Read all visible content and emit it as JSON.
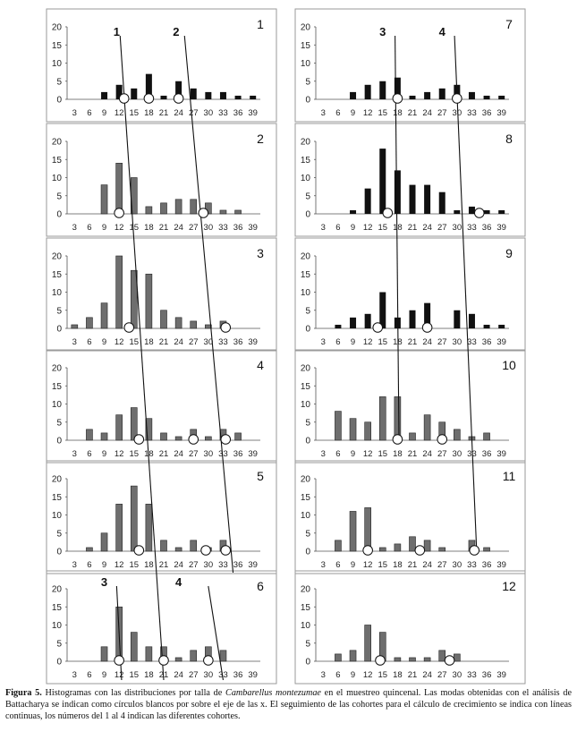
{
  "figure": {
    "x_ticks": [
      3,
      6,
      9,
      12,
      15,
      18,
      21,
      24,
      27,
      30,
      33,
      36,
      39
    ],
    "y_ticks": [
      0,
      5,
      10,
      15,
      20
    ],
    "ylim": [
      0,
      20
    ],
    "cohort_labels": [
      "1",
      "2",
      "3",
      "4"
    ]
  },
  "caption": {
    "label": "Figura 5.",
    "text_1": " Histogramas con las distribuciones por talla de ",
    "species": "Cambarellus montezumae",
    "text_2": " en el muestreo quincenal. Las modas obtenidas con el análisis de Battacharya se indican como círculos blancos por sobre el eje de las x. El seguimiento de las cohortes para el cálculo de crecimiento se indica con líneas continuas, los números del 1 al 4 indican las diferentes cohortes."
  },
  "chart_data": [
    {
      "type": "bar",
      "title": "1",
      "categories": [
        "3",
        "6",
        "9",
        "12",
        "15",
        "18",
        "21",
        "24",
        "27",
        "30",
        "33",
        "36",
        "39"
      ],
      "values": [
        0,
        0,
        2,
        4,
        3,
        7,
        1,
        5,
        3,
        2,
        2,
        1,
        1
      ],
      "modes": [
        13,
        18,
        24
      ],
      "ylim": [
        0,
        20
      ]
    },
    {
      "type": "bar",
      "title": "2",
      "categories": [
        "3",
        "6",
        "9",
        "12",
        "15",
        "18",
        "21",
        "24",
        "27",
        "30",
        "33",
        "36",
        "39"
      ],
      "values": [
        0,
        0,
        8,
        14,
        10,
        2,
        3,
        4,
        4,
        3,
        1,
        1,
        0
      ],
      "modes": [
        12,
        29
      ],
      "ylim": [
        0,
        20
      ]
    },
    {
      "type": "bar",
      "title": "3",
      "categories": [
        "3",
        "6",
        "9",
        "12",
        "15",
        "18",
        "21",
        "24",
        "27",
        "30",
        "33",
        "36",
        "39"
      ],
      "values": [
        1,
        3,
        7,
        20,
        16,
        15,
        5,
        3,
        2,
        1,
        2,
        0,
        0
      ],
      "modes": [
        14,
        33.5
      ],
      "ylim": [
        0,
        20
      ]
    },
    {
      "type": "bar",
      "title": "4",
      "categories": [
        "3",
        "6",
        "9",
        "12",
        "15",
        "18",
        "21",
        "24",
        "27",
        "30",
        "33",
        "36",
        "39"
      ],
      "values": [
        0,
        3,
        2,
        7,
        9,
        6,
        2,
        1,
        3,
        1,
        3,
        2,
        0
      ],
      "modes": [
        16,
        27,
        33.5
      ],
      "ylim": [
        0,
        20
      ]
    },
    {
      "type": "bar",
      "title": "5",
      "categories": [
        "3",
        "6",
        "9",
        "12",
        "15",
        "18",
        "21",
        "24",
        "27",
        "30",
        "33",
        "36",
        "39"
      ],
      "values": [
        0,
        1,
        5,
        13,
        18,
        13,
        3,
        1,
        3,
        1,
        3,
        0,
        0
      ],
      "modes": [
        16,
        29.5,
        33.5
      ],
      "ylim": [
        0,
        20
      ]
    },
    {
      "type": "bar",
      "title": "6",
      "categories": [
        "3",
        "6",
        "9",
        "12",
        "15",
        "18",
        "21",
        "24",
        "27",
        "30",
        "33",
        "36",
        "39"
      ],
      "values": [
        0,
        0,
        4,
        15,
        8,
        4,
        4,
        1,
        3,
        4,
        3,
        0,
        0
      ],
      "modes": [
        12,
        21,
        30
      ],
      "ylim": [
        0,
        20
      ]
    },
    {
      "type": "bar",
      "title": "7",
      "categories": [
        "3",
        "6",
        "9",
        "12",
        "15",
        "18",
        "21",
        "24",
        "27",
        "30",
        "33",
        "36",
        "39"
      ],
      "values": [
        0,
        0,
        2,
        4,
        5,
        6,
        1,
        2,
        3,
        4,
        2,
        1,
        1
      ],
      "modes": [
        18,
        30
      ],
      "ylim": [
        0,
        20
      ]
    },
    {
      "type": "bar",
      "title": "8",
      "categories": [
        "3",
        "6",
        "9",
        "12",
        "15",
        "18",
        "21",
        "24",
        "27",
        "30",
        "33",
        "36",
        "39"
      ],
      "values": [
        0,
        0,
        1,
        7,
        18,
        12,
        8,
        8,
        6,
        1,
        2,
        1,
        1
      ],
      "modes": [
        16,
        34.5
      ],
      "ylim": [
        0,
        20
      ]
    },
    {
      "type": "bar",
      "title": "9",
      "categories": [
        "3",
        "6",
        "9",
        "12",
        "15",
        "18",
        "21",
        "24",
        "27",
        "30",
        "33",
        "36",
        "39"
      ],
      "values": [
        0,
        1,
        3,
        4,
        10,
        3,
        5,
        7,
        0,
        5,
        4,
        1,
        1
      ],
      "modes": [
        14,
        24
      ],
      "ylim": [
        0,
        20
      ]
    },
    {
      "type": "bar",
      "title": "10",
      "categories": [
        "3",
        "6",
        "9",
        "12",
        "15",
        "18",
        "21",
        "24",
        "27",
        "30",
        "33",
        "36",
        "39"
      ],
      "values": [
        0,
        8,
        6,
        5,
        12,
        12,
        2,
        7,
        5,
        3,
        1,
        2,
        0
      ],
      "modes": [
        18,
        27
      ],
      "ylim": [
        0,
        20
      ]
    },
    {
      "type": "bar",
      "title": "11",
      "categories": [
        "3",
        "6",
        "9",
        "12",
        "15",
        "18",
        "21",
        "24",
        "27",
        "30",
        "33",
        "36",
        "39"
      ],
      "values": [
        0,
        3,
        11,
        12,
        1,
        2,
        4,
        3,
        1,
        0,
        3,
        1,
        0
      ],
      "modes": [
        12,
        22.5,
        33.5
      ],
      "ylim": [
        0,
        20
      ]
    },
    {
      "type": "bar",
      "title": "12",
      "categories": [
        "3",
        "6",
        "9",
        "12",
        "15",
        "18",
        "21",
        "24",
        "27",
        "30",
        "33",
        "36",
        "39"
      ],
      "values": [
        0,
        2,
        3,
        10,
        8,
        1,
        1,
        1,
        3,
        2,
        0,
        0,
        0
      ],
      "modes": [
        14.5,
        28.5
      ],
      "ylim": [
        0,
        20
      ]
    }
  ]
}
